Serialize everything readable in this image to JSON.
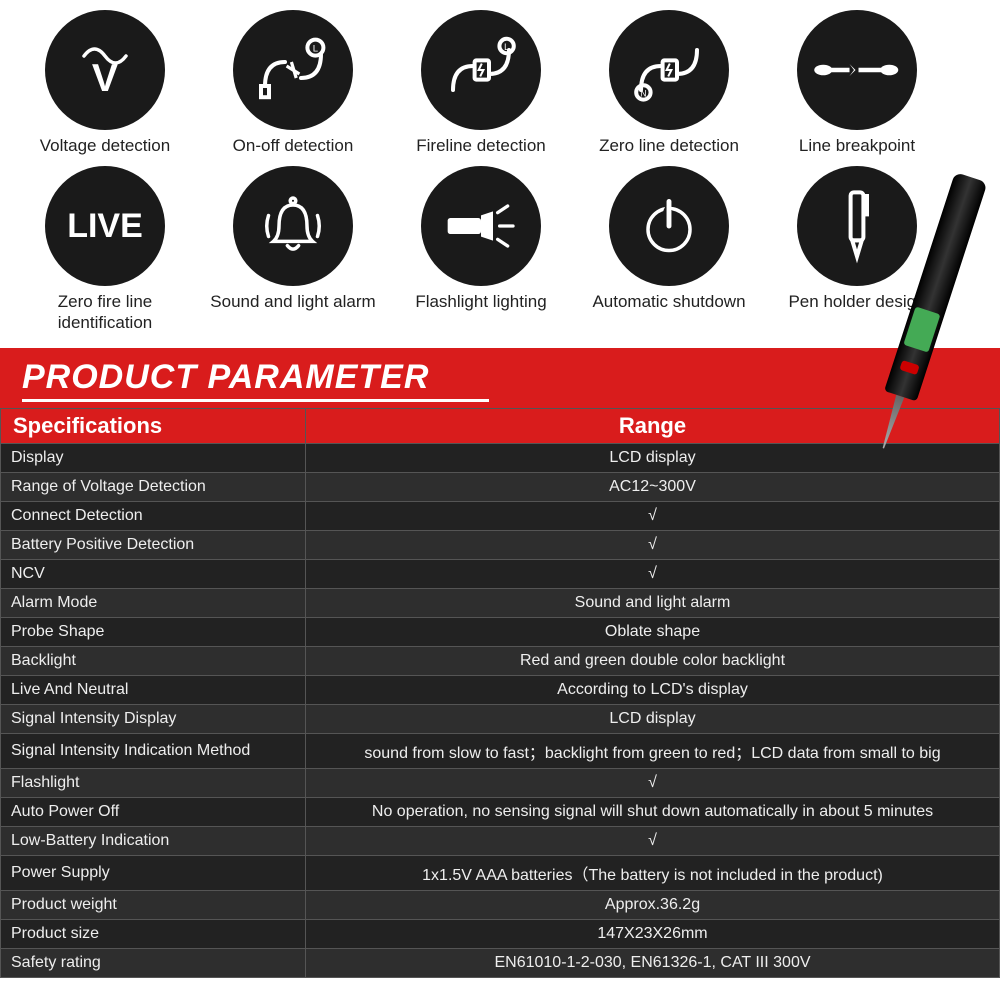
{
  "features": [
    {
      "icon": "voltage",
      "label": "Voltage detection"
    },
    {
      "icon": "onoff",
      "label": "On-off detection"
    },
    {
      "icon": "fireline",
      "label": "Fireline detection"
    },
    {
      "icon": "zeroline",
      "label": "Zero line detection"
    },
    {
      "icon": "breakpoint",
      "label": "Line breakpoint"
    },
    {
      "icon": "live",
      "label": "Zero fire line identification"
    },
    {
      "icon": "alarm",
      "label": "Sound and light alarm"
    },
    {
      "icon": "flashlight",
      "label": "Flashlight lighting"
    },
    {
      "icon": "shutdown",
      "label": "Automatic shutdown"
    },
    {
      "icon": "pen",
      "label": "Pen holder design"
    }
  ],
  "banner_title": "PRODUCT PARAMETER",
  "table": {
    "headers": [
      "Specifications",
      "Range"
    ],
    "rows": [
      [
        "Display",
        "LCD display"
      ],
      [
        "Range of Voltage Detection",
        "AC12~300V"
      ],
      [
        "Connect Detection",
        "√"
      ],
      [
        "Battery Positive Detection",
        "√"
      ],
      [
        "NCV",
        "√"
      ],
      [
        "Alarm Mode",
        "Sound and light alarm"
      ],
      [
        "Probe Shape",
        "Oblate shape"
      ],
      [
        "Backlight",
        "Red and green double color backlight"
      ],
      [
        "Live And Neutral",
        "According to LCD's display"
      ],
      [
        "Signal Intensity Display",
        "LCD display"
      ],
      [
        "Signal Intensity Indication Method",
        "sound from slow to fast；backlight from green to red；LCD data from small to big"
      ],
      [
        "Flashlight",
        "√"
      ],
      [
        "Auto Power Off",
        "No operation, no sensing signal will shut down automatically in about 5 minutes"
      ],
      [
        "Low-Battery Indication",
        "√"
      ],
      [
        "Power Supply",
        "1x1.5V AAA batteries（The battery is not included in the product)"
      ],
      [
        "Product weight",
        "Approx.36.2g"
      ],
      [
        "Product size",
        "147X23X26mm"
      ],
      [
        "Safety rating",
        "EN61010-1-2-030, EN61326-1, CAT III 300V"
      ]
    ]
  },
  "colors": {
    "icon_bg": "#1a1a1a",
    "banner_bg": "#d91c1c",
    "table_odd": "#222222",
    "table_even": "#2e2e2e",
    "text_light": "#eeeeee"
  }
}
